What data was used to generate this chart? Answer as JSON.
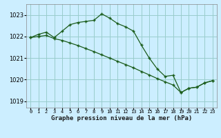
{
  "title": "Graphe pression niveau de la mer (hPa)",
  "background_color": "#cceeff",
  "grid_color": "#99cccc",
  "line_color": "#1a5c1a",
  "xlim": [
    -0.5,
    23.5
  ],
  "ylim": [
    1018.7,
    1023.5
  ],
  "yticks": [
    1019,
    1020,
    1021,
    1022,
    1023
  ],
  "xtick_labels": [
    "0",
    "1",
    "2",
    "3",
    "4",
    "5",
    "6",
    "7",
    "8",
    "9",
    "10",
    "11",
    "12",
    "13",
    "14",
    "15",
    "16",
    "17",
    "18",
    "19",
    "20",
    "21",
    "22",
    "23"
  ],
  "line1_x": [
    0,
    1,
    2,
    3,
    4,
    5,
    6,
    7,
    8,
    9,
    10,
    11,
    12,
    13,
    14,
    15,
    16,
    17,
    18,
    19,
    20,
    21,
    22,
    23
  ],
  "line1_y": [
    1021.95,
    1022.1,
    1022.2,
    1021.95,
    1022.25,
    1022.55,
    1022.65,
    1022.7,
    1022.75,
    1023.05,
    1022.85,
    1022.6,
    1022.45,
    1022.25,
    1021.6,
    1021.0,
    1020.5,
    1020.15,
    1020.2,
    1019.4,
    1019.6,
    1019.65,
    1019.85,
    1019.95
  ],
  "line2_x": [
    0,
    1,
    2,
    3,
    4,
    5,
    6,
    7,
    8,
    9,
    10,
    11,
    12,
    13,
    14,
    15,
    16,
    17,
    18,
    19,
    20,
    21,
    22,
    23
  ],
  "line2_y": [
    1021.95,
    1022.0,
    1022.05,
    1021.9,
    1021.82,
    1021.7,
    1021.58,
    1021.44,
    1021.3,
    1021.15,
    1021.0,
    1020.85,
    1020.7,
    1020.55,
    1020.38,
    1020.22,
    1020.05,
    1019.9,
    1019.75,
    1019.4,
    1019.6,
    1019.65,
    1019.85,
    1019.95
  ]
}
